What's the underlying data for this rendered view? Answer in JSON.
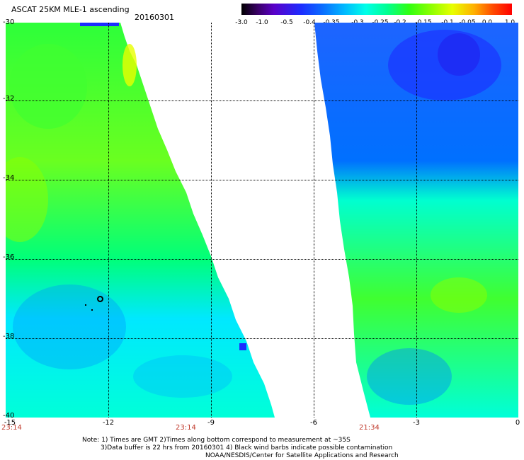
{
  "header": {
    "title": "ASCAT 25KM MLE-1 ascending",
    "date": "20160301"
  },
  "colorbar": {
    "labels": [
      "-3.0",
      "-1.0",
      "-0.5",
      "-0.4",
      "-0.35",
      "-0.3",
      "-0.25",
      "-0.2",
      "-0.15",
      "-0.1",
      "-0.05",
      "0.0",
      "1.0"
    ]
  },
  "axes": {
    "lat_labels": [
      "-30",
      "-32",
      "-34",
      "-36",
      "-38",
      "-40"
    ],
    "lon_labels": [
      "-15",
      "-12",
      "-9",
      "-6",
      "-3",
      "0"
    ],
    "time_labels": [
      "23:14",
      "23:14",
      "21:34"
    ]
  },
  "notes": {
    "line1": "Note: 1) Times are GMT 2)Times along bottom correspond to measurement at ~35S",
    "line2": "3)Data buffer is 22 hrs from 20160301 4) Black wind barbs indicate possible contamination",
    "line3": "NOAA/NESDIS/Center for Satellite Applications and Research"
  },
  "colors": {
    "swath_blue": "#1e64ff",
    "swath_cyan": "#00ffe8",
    "swath_green": "#30ff10",
    "time_label": "#c0392b"
  }
}
